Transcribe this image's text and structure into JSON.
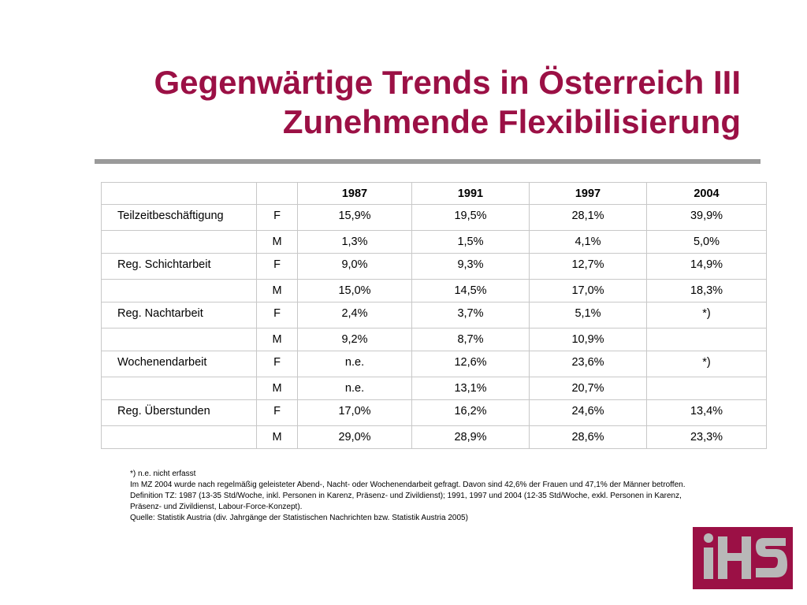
{
  "title": {
    "line1": "Gegenwärtige Trends in Österreich III",
    "line2": "Zunehmende Flexibilisierung"
  },
  "table": {
    "headers": [
      "",
      "",
      "1987",
      "1991",
      "1997",
      "2004"
    ],
    "rows": [
      {
        "label": "Teilzeitbeschäftigung",
        "sex": "F",
        "values": [
          "15,9%",
          "19,5%",
          "28,1%",
          "39,9%"
        ]
      },
      {
        "label": "",
        "sex": "M",
        "values": [
          "1,3%",
          "1,5%",
          "4,1%",
          "5,0%"
        ]
      },
      {
        "label": "Reg. Schichtarbeit",
        "sex": "F",
        "values": [
          "9,0%",
          "9,3%",
          "12,7%",
          "14,9%"
        ]
      },
      {
        "label": "",
        "sex": "M",
        "values": [
          "15,0%",
          "14,5%",
          "17,0%",
          "18,3%"
        ]
      },
      {
        "label": "Reg. Nachtarbeit",
        "sex": "F",
        "values": [
          "2,4%",
          "3,7%",
          "5,1%",
          "*)"
        ]
      },
      {
        "label": "",
        "sex": "M",
        "values": [
          "9,2%",
          "8,7%",
          "10,9%",
          ""
        ]
      },
      {
        "label": "Wochenendarbeit",
        "sex": "F",
        "values": [
          "n.e.",
          "12,6%",
          "23,6%",
          "*)"
        ]
      },
      {
        "label": "",
        "sex": "M",
        "values": [
          "n.e.",
          "13,1%",
          "20,7%",
          ""
        ]
      },
      {
        "label": "Reg. Überstunden",
        "sex": "F",
        "values": [
          "17,0%",
          "16,2%",
          "24,6%",
          "13,4%"
        ]
      },
      {
        "label": "",
        "sex": "M",
        "values": [
          "29,0%",
          "28,9%",
          "28,6%",
          "23,3%"
        ]
      }
    ]
  },
  "notes": [
    "*) n.e. nicht erfasst",
    "Im MZ 2004 wurde nach regelmäßig geleisteter Abend-, Nacht- oder Wochenendarbeit gefragt. Davon sind 42,6% der Frauen und 47,1% der Männer betroffen.",
    "Definition TZ: 1987 (13-35 Std/Woche, inkl. Personen in Karenz, Präsenz- und Zivildienst); 1991, 1997 und 2004 (12-35 Std/Woche, exkl. Personen in Karenz, Präsenz- und Zivildienst, Labour-Force-Konzept).",
    "Quelle: Statistik Austria (div. Jahrgänge der Statistischen Nachrichten bzw. Statistik Austria 2005)"
  ],
  "logo": {
    "text": "iHS",
    "icon": "ihs-logo-icon",
    "background_color": "#9b1045",
    "letter_color": "#b8b8b8"
  },
  "colors": {
    "title": "#9b1045",
    "rule": "#9a9a9a",
    "table_border": "#c8c8c8"
  }
}
